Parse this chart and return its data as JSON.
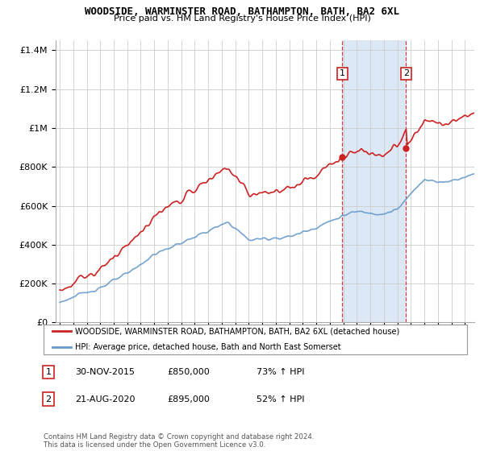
{
  "title": "WOODSIDE, WARMINSTER ROAD, BATHAMPTON, BATH, BA2 6XL",
  "subtitle": "Price paid vs. HM Land Registry's House Price Index (HPI)",
  "property_label": "WOODSIDE, WARMINSTER ROAD, BATHAMPTON, BATH, BA2 6XL (detached house)",
  "hpi_label": "HPI: Average price, detached house, Bath and North East Somerset",
  "footer": "Contains HM Land Registry data © Crown copyright and database right 2024.\nThis data is licensed under the Open Government Licence v3.0.",
  "sale1_date": "30-NOV-2015",
  "sale1_price": "£850,000",
  "sale1_hpi": "73% ↑ HPI",
  "sale2_date": "21-AUG-2020",
  "sale2_price": "£895,000",
  "sale2_hpi": "52% ↑ HPI",
  "property_color": "#cc2222",
  "hpi_color": "#6699cc",
  "sale1_x": 2015.92,
  "sale2_x": 2020.64,
  "ylim_max": 1400000,
  "ylim_min": 0,
  "background_color": "#ffffff",
  "grid_color": "#cccccc",
  "highlight_bg": "#dce8f5"
}
